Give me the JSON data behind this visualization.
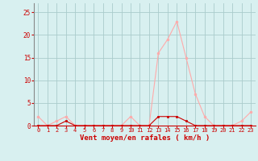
{
  "hours": [
    0,
    1,
    2,
    3,
    4,
    5,
    6,
    7,
    8,
    9,
    10,
    11,
    12,
    13,
    14,
    15,
    16,
    17,
    18,
    19,
    20,
    21,
    22,
    23
  ],
  "rafales": [
    2,
    0,
    1,
    2,
    0,
    0,
    0,
    0,
    0,
    0,
    2,
    0,
    0,
    16,
    19,
    23,
    15,
    7,
    2,
    0,
    0,
    0,
    1,
    3
  ],
  "moyen": [
    0,
    0,
    0,
    1,
    0,
    0,
    0,
    0,
    0,
    0,
    0,
    0,
    0,
    2,
    2,
    2,
    1,
    0,
    0,
    0,
    0,
    0,
    0,
    0
  ],
  "rafales_color": "#ffaaaa",
  "moyen_color": "#cc0000",
  "bg_color": "#d8f0f0",
  "grid_color": "#aacccc",
  "axis_color": "#cc0000",
  "tick_color": "#cc0000",
  "xlabel": "Vent moyen/en rafales ( km/h )",
  "ylim": [
    0,
    27
  ],
  "xlim": [
    -0.5,
    23.5
  ],
  "yticks": [
    0,
    5,
    10,
    15,
    20,
    25
  ],
  "xticks": [
    0,
    1,
    2,
    3,
    4,
    5,
    6,
    7,
    8,
    9,
    10,
    11,
    12,
    13,
    14,
    15,
    16,
    17,
    18,
    19,
    20,
    21,
    22,
    23
  ]
}
